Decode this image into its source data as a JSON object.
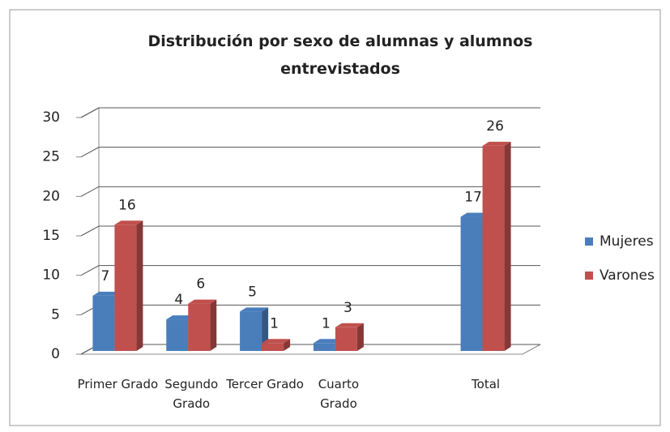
{
  "chart_data": {
    "type": "bar3d",
    "title": "Distribución por sexo de alumnas y alumnos entrevistados",
    "categories": [
      "Primer Grado",
      "Segundo Grado",
      "Tercer Grado",
      "Cuarto Grado",
      null,
      "Total"
    ],
    "series": [
      {
        "name": "Mujeres",
        "color": "#4a7ebb",
        "values": [
          7,
          4,
          5,
          1,
          null,
          17
        ]
      },
      {
        "name": "Varones",
        "color": "#c0504d",
        "values": [
          16,
          6,
          1,
          3,
          null,
          26
        ]
      }
    ],
    "ylim": [
      0,
      30
    ],
    "yticks": [
      0,
      5,
      10,
      15,
      20,
      25,
      30
    ],
    "grid": true,
    "legend": "right"
  }
}
